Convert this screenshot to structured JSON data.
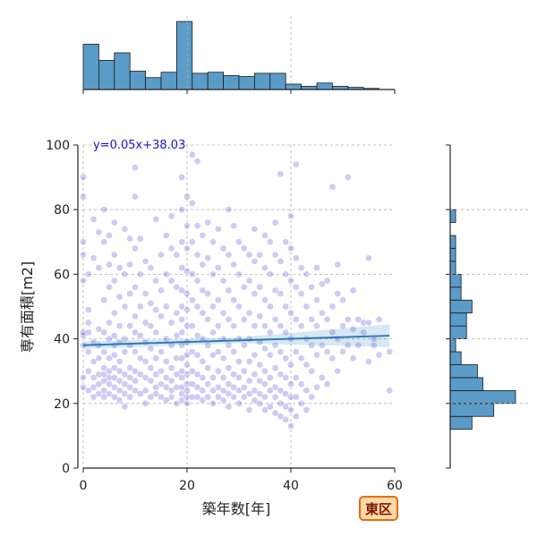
{
  "chart_data": {
    "type": "scatter",
    "xlabel": "築年数[年]",
    "ylabel": "専有面積[m2]",
    "xlim": [
      0,
      60
    ],
    "ylim": [
      0,
      100
    ],
    "xticks": [
      "0",
      "20",
      "40",
      "60"
    ],
    "yticks": [
      "0",
      "20",
      "40",
      "60",
      "80",
      "100"
    ],
    "grid": true,
    "point_color": "#1a1acc",
    "regression": {
      "slope": 0.05,
      "intercept": 38.03,
      "x_range": [
        0,
        59
      ],
      "label": "y=0.05x+38.03",
      "color": "#2a7ab8"
    },
    "badge": {
      "label": "東区",
      "fill": "#ffd8a8",
      "border": "#e86a10"
    },
    "marginal_x": {
      "bin_width": 3,
      "bin_start": 0,
      "counts": [
        42,
        27,
        34,
        17,
        11,
        16,
        63,
        15,
        16,
        13,
        12,
        15,
        15,
        5,
        3,
        6,
        3,
        2,
        1,
        0
      ],
      "color": "#5a9bc8"
    },
    "marginal_y": {
      "bin_width": 4,
      "bin_start": 12,
      "counts": [
        4,
        8,
        12,
        6,
        5,
        2,
        1,
        3,
        3,
        4,
        2,
        2,
        1,
        1,
        1,
        0,
        1,
        0,
        0
      ],
      "color": "#5a9bc8"
    },
    "points": [
      [
        0,
        25
      ],
      [
        0,
        28
      ],
      [
        0,
        41
      ],
      [
        0,
        42
      ],
      [
        0,
        66
      ],
      [
        0,
        70
      ],
      [
        0,
        84
      ],
      [
        0,
        90
      ],
      [
        0,
        58
      ],
      [
        0,
        38
      ],
      [
        1,
        24
      ],
      [
        1,
        30
      ],
      [
        1,
        36
      ],
      [
        1,
        42
      ],
      [
        1,
        45
      ],
      [
        1,
        60
      ],
      [
        1,
        49
      ],
      [
        2,
        22
      ],
      [
        2,
        25
      ],
      [
        2,
        28
      ],
      [
        2,
        33
      ],
      [
        2,
        39
      ],
      [
        2,
        65
      ],
      [
        2,
        77
      ],
      [
        3,
        23
      ],
      [
        3,
        26
      ],
      [
        3,
        29
      ],
      [
        3,
        34
      ],
      [
        3,
        38
      ],
      [
        3,
        43
      ],
      [
        3,
        62
      ],
      [
        3,
        73
      ],
      [
        4,
        22
      ],
      [
        4,
        24
      ],
      [
        4,
        27
      ],
      [
        4,
        29
      ],
      [
        4,
        31
      ],
      [
        4,
        36
      ],
      [
        4,
        42
      ],
      [
        4,
        52
      ],
      [
        4,
        70
      ],
      [
        4,
        80
      ],
      [
        5,
        23
      ],
      [
        5,
        26
      ],
      [
        5,
        28
      ],
      [
        5,
        30
      ],
      [
        5,
        34
      ],
      [
        5,
        40
      ],
      [
        5,
        45
      ],
      [
        5,
        56
      ],
      [
        5,
        63
      ],
      [
        5,
        72
      ],
      [
        6,
        22
      ],
      [
        6,
        25
      ],
      [
        6,
        28
      ],
      [
        6,
        31
      ],
      [
        6,
        35
      ],
      [
        6,
        38
      ],
      [
        6,
        41
      ],
      [
        6,
        48
      ],
      [
        6,
        58
      ],
      [
        6,
        66
      ],
      [
        6,
        76
      ],
      [
        7,
        21
      ],
      [
        7,
        24
      ],
      [
        7,
        27
      ],
      [
        7,
        30
      ],
      [
        7,
        33
      ],
      [
        7,
        39
      ],
      [
        7,
        44
      ],
      [
        7,
        53
      ],
      [
        7,
        62
      ],
      [
        8,
        19
      ],
      [
        8,
        23
      ],
      [
        8,
        26
      ],
      [
        8,
        29
      ],
      [
        8,
        36
      ],
      [
        8,
        40
      ],
      [
        8,
        50
      ],
      [
        8,
        60
      ],
      [
        8,
        74
      ],
      [
        9,
        22
      ],
      [
        9,
        25
      ],
      [
        9,
        28
      ],
      [
        9,
        31
      ],
      [
        9,
        38
      ],
      [
        9,
        44
      ],
      [
        9,
        54
      ],
      [
        9,
        63
      ],
      [
        9,
        71
      ],
      [
        10,
        24
      ],
      [
        10,
        27
      ],
      [
        10,
        30
      ],
      [
        10,
        36
      ],
      [
        10,
        42
      ],
      [
        10,
        47
      ],
      [
        10,
        56
      ],
      [
        10,
        68
      ],
      [
        10,
        84
      ],
      [
        10,
        93
      ],
      [
        11,
        23
      ],
      [
        11,
        29
      ],
      [
        11,
        34
      ],
      [
        11,
        41
      ],
      [
        11,
        50
      ],
      [
        11,
        60
      ],
      [
        11,
        71
      ],
      [
        12,
        20
      ],
      [
        12,
        24
      ],
      [
        12,
        28
      ],
      [
        12,
        33
      ],
      [
        12,
        39
      ],
      [
        12,
        45
      ],
      [
        12,
        54
      ],
      [
        12,
        64
      ],
      [
        13,
        22
      ],
      [
        13,
        27
      ],
      [
        13,
        31
      ],
      [
        13,
        37
      ],
      [
        13,
        44
      ],
      [
        13,
        51
      ],
      [
        13,
        62
      ],
      [
        14,
        23
      ],
      [
        14,
        25
      ],
      [
        14,
        29
      ],
      [
        14,
        34
      ],
      [
        14,
        42
      ],
      [
        14,
        49
      ],
      [
        14,
        58
      ],
      [
        14,
        77
      ],
      [
        15,
        22
      ],
      [
        15,
        26
      ],
      [
        15,
        30
      ],
      [
        15,
        36
      ],
      [
        15,
        47
      ],
      [
        15,
        55
      ],
      [
        15,
        66
      ],
      [
        16,
        21
      ],
      [
        16,
        25
      ],
      [
        16,
        28
      ],
      [
        16,
        33
      ],
      [
        16,
        40
      ],
      [
        16,
        50
      ],
      [
        16,
        60
      ],
      [
        16,
        72
      ],
      [
        17,
        22
      ],
      [
        17,
        24
      ],
      [
        17,
        27
      ],
      [
        17,
        31
      ],
      [
        17,
        38
      ],
      [
        17,
        45
      ],
      [
        17,
        58
      ],
      [
        17,
        68
      ],
      [
        17,
        78
      ],
      [
        18,
        20
      ],
      [
        18,
        25
      ],
      [
        18,
        29
      ],
      [
        18,
        34
      ],
      [
        18,
        41
      ],
      [
        18,
        48
      ],
      [
        18,
        56
      ],
      [
        18,
        66
      ],
      [
        19,
        21
      ],
      [
        19,
        23
      ],
      [
        19,
        25
      ],
      [
        19,
        28
      ],
      [
        19,
        30
      ],
      [
        19,
        34
      ],
      [
        19,
        38
      ],
      [
        19,
        42
      ],
      [
        19,
        46
      ],
      [
        19,
        50
      ],
      [
        19,
        55
      ],
      [
        19,
        62
      ],
      [
        19,
        70
      ],
      [
        19,
        80
      ],
      [
        19,
        90
      ],
      [
        20,
        20
      ],
      [
        20,
        22
      ],
      [
        20,
        24
      ],
      [
        20,
        26
      ],
      [
        20,
        29
      ],
      [
        20,
        32
      ],
      [
        20,
        35
      ],
      [
        20,
        39
      ],
      [
        20,
        44
      ],
      [
        20,
        49
      ],
      [
        20,
        54
      ],
      [
        20,
        61
      ],
      [
        20,
        68
      ],
      [
        20,
        75
      ],
      [
        20,
        84
      ],
      [
        21,
        22
      ],
      [
        21,
        26
      ],
      [
        21,
        30
      ],
      [
        21,
        36
      ],
      [
        21,
        44
      ],
      [
        21,
        52
      ],
      [
        21,
        60
      ],
      [
        21,
        70
      ],
      [
        21,
        82
      ],
      [
        21,
        97
      ],
      [
        22,
        22
      ],
      [
        22,
        25
      ],
      [
        22,
        29
      ],
      [
        22,
        35
      ],
      [
        22,
        41
      ],
      [
        22,
        50
      ],
      [
        22,
        58
      ],
      [
        22,
        66
      ],
      [
        22,
        75
      ],
      [
        22,
        95
      ],
      [
        23,
        21
      ],
      [
        23,
        24
      ],
      [
        23,
        28
      ],
      [
        23,
        33
      ],
      [
        23,
        40
      ],
      [
        23,
        48
      ],
      [
        23,
        55
      ],
      [
        23,
        63
      ],
      [
        23,
        72
      ],
      [
        24,
        22
      ],
      [
        24,
        26
      ],
      [
        24,
        31
      ],
      [
        24,
        38
      ],
      [
        24,
        46
      ],
      [
        24,
        54
      ],
      [
        24,
        65
      ],
      [
        24,
        76
      ],
      [
        25,
        20
      ],
      [
        25,
        24
      ],
      [
        25,
        28
      ],
      [
        25,
        35
      ],
      [
        25,
        42
      ],
      [
        25,
        50
      ],
      [
        25,
        60
      ],
      [
        25,
        70
      ],
      [
        26,
        22
      ],
      [
        26,
        25
      ],
      [
        26,
        30
      ],
      [
        26,
        36
      ],
      [
        26,
        44
      ],
      [
        26,
        52
      ],
      [
        26,
        62
      ],
      [
        26,
        74
      ],
      [
        27,
        21
      ],
      [
        27,
        24
      ],
      [
        27,
        28
      ],
      [
        27,
        34
      ],
      [
        27,
        40
      ],
      [
        27,
        48
      ],
      [
        27,
        58
      ],
      [
        27,
        68
      ],
      [
        28,
        19
      ],
      [
        28,
        23
      ],
      [
        28,
        26
      ],
      [
        28,
        31
      ],
      [
        28,
        38
      ],
      [
        28,
        46
      ],
      [
        28,
        55
      ],
      [
        28,
        66
      ],
      [
        28,
        80
      ],
      [
        29,
        22
      ],
      [
        29,
        25
      ],
      [
        29,
        29
      ],
      [
        29,
        36
      ],
      [
        29,
        44
      ],
      [
        29,
        52
      ],
      [
        29,
        63
      ],
      [
        29,
        75
      ],
      [
        30,
        20
      ],
      [
        30,
        24
      ],
      [
        30,
        28
      ],
      [
        30,
        33
      ],
      [
        30,
        40
      ],
      [
        30,
        50
      ],
      [
        30,
        60
      ],
      [
        30,
        70
      ],
      [
        31,
        22
      ],
      [
        31,
        25
      ],
      [
        31,
        30
      ],
      [
        31,
        38
      ],
      [
        31,
        46
      ],
      [
        31,
        56
      ],
      [
        31,
        68
      ],
      [
        32,
        18
      ],
      [
        32,
        23
      ],
      [
        32,
        27
      ],
      [
        32,
        33
      ],
      [
        32,
        40
      ],
      [
        32,
        48
      ],
      [
        32,
        58
      ],
      [
        32,
        66
      ],
      [
        33,
        21
      ],
      [
        33,
        24
      ],
      [
        33,
        29
      ],
      [
        33,
        35
      ],
      [
        33,
        44
      ],
      [
        33,
        54
      ],
      [
        33,
        64
      ],
      [
        33,
        74
      ],
      [
        34,
        20
      ],
      [
        34,
        23
      ],
      [
        34,
        27
      ],
      [
        34,
        32
      ],
      [
        34,
        39
      ],
      [
        34,
        47
      ],
      [
        34,
        56
      ],
      [
        34,
        66
      ],
      [
        35,
        18
      ],
      [
        35,
        22
      ],
      [
        35,
        26
      ],
      [
        35,
        30
      ],
      [
        35,
        37
      ],
      [
        35,
        44
      ],
      [
        35,
        52
      ],
      [
        35,
        62
      ],
      [
        35,
        72
      ],
      [
        36,
        19
      ],
      [
        36,
        24
      ],
      [
        36,
        28
      ],
      [
        36,
        35
      ],
      [
        36,
        42
      ],
      [
        36,
        50
      ],
      [
        36,
        60
      ],
      [
        36,
        70
      ],
      [
        37,
        17
      ],
      [
        37,
        22
      ],
      [
        37,
        25
      ],
      [
        37,
        31
      ],
      [
        37,
        38
      ],
      [
        37,
        46
      ],
      [
        37,
        55
      ],
      [
        37,
        66
      ],
      [
        37,
        76
      ],
      [
        38,
        16
      ],
      [
        38,
        20
      ],
      [
        38,
        24
      ],
      [
        38,
        29
      ],
      [
        38,
        36
      ],
      [
        38,
        44
      ],
      [
        38,
        54
      ],
      [
        38,
        64
      ],
      [
        38,
        91
      ],
      [
        39,
        15
      ],
      [
        39,
        19
      ],
      [
        39,
        23
      ],
      [
        39,
        28
      ],
      [
        39,
        34
      ],
      [
        39,
        42
      ],
      [
        39,
        50
      ],
      [
        39,
        60
      ],
      [
        39,
        70
      ],
      [
        40,
        13
      ],
      [
        40,
        18
      ],
      [
        40,
        22
      ],
      [
        40,
        26
      ],
      [
        40,
        32
      ],
      [
        40,
        40
      ],
      [
        40,
        48
      ],
      [
        40,
        58
      ],
      [
        40,
        68
      ],
      [
        40,
        78
      ],
      [
        41,
        16
      ],
      [
        41,
        22
      ],
      [
        41,
        28
      ],
      [
        41,
        36
      ],
      [
        41,
        46
      ],
      [
        41,
        56
      ],
      [
        41,
        65
      ],
      [
        41,
        94
      ],
      [
        42,
        20
      ],
      [
        42,
        26
      ],
      [
        42,
        34
      ],
      [
        42,
        44
      ],
      [
        42,
        54
      ],
      [
        42,
        62
      ],
      [
        43,
        18
      ],
      [
        43,
        24
      ],
      [
        43,
        32
      ],
      [
        43,
        40
      ],
      [
        43,
        50
      ],
      [
        43,
        60
      ],
      [
        44,
        22
      ],
      [
        44,
        30
      ],
      [
        44,
        38
      ],
      [
        44,
        46
      ],
      [
        44,
        56
      ],
      [
        45,
        25
      ],
      [
        45,
        35
      ],
      [
        45,
        44
      ],
      [
        45,
        52
      ],
      [
        45,
        62
      ],
      [
        46,
        28
      ],
      [
        46,
        38
      ],
      [
        46,
        48
      ],
      [
        46,
        57
      ],
      [
        47,
        26
      ],
      [
        47,
        36
      ],
      [
        47,
        46
      ],
      [
        47,
        58
      ],
      [
        48,
        34
      ],
      [
        48,
        42
      ],
      [
        48,
        50
      ],
      [
        48,
        87
      ],
      [
        49,
        30
      ],
      [
        49,
        40
      ],
      [
        49,
        54
      ],
      [
        49,
        63
      ],
      [
        50,
        36
      ],
      [
        50,
        44
      ],
      [
        50,
        52
      ],
      [
        51,
        38
      ],
      [
        51,
        46
      ],
      [
        51,
        90
      ],
      [
        52,
        34
      ],
      [
        52,
        43
      ],
      [
        52,
        55
      ],
      [
        53,
        38
      ],
      [
        53,
        46
      ],
      [
        54,
        42
      ],
      [
        54,
        45
      ],
      [
        55,
        33
      ],
      [
        55,
        45
      ],
      [
        55,
        65
      ],
      [
        56,
        40
      ],
      [
        56,
        38
      ],
      [
        57,
        35
      ],
      [
        57,
        46
      ],
      [
        59,
        24
      ],
      [
        59,
        36
      ]
    ]
  }
}
